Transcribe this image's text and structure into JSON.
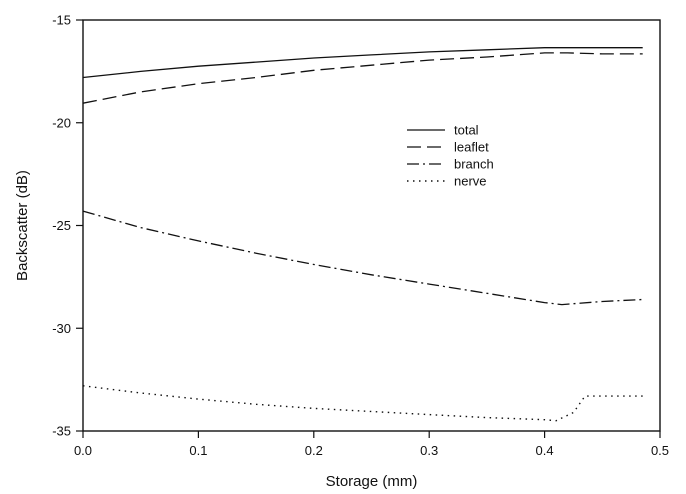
{
  "chart_data": {
    "type": "line",
    "title": "",
    "xlabel": "Storage (mm)",
    "ylabel": "Backscatter (dB)",
    "xlim": [
      0,
      0.5
    ],
    "ylim": [
      -35,
      -15
    ],
    "xticks": [
      0.0,
      0.1,
      0.2,
      0.3,
      0.4,
      0.5
    ],
    "xtick_labels": [
      "0.0",
      "0.1",
      "0.2",
      "0.3",
      "0.4",
      "0.5"
    ],
    "yticks": [
      -35,
      -30,
      -25,
      -20,
      -15
    ],
    "ytick_labels": [
      "-35",
      "-30",
      "-25",
      "-20",
      "-15"
    ],
    "grid": false,
    "legend_position": "center-right",
    "series": [
      {
        "name": "total",
        "style": "solid",
        "x": [
          0.0,
          0.05,
          0.1,
          0.15,
          0.2,
          0.25,
          0.3,
          0.35,
          0.4,
          0.41,
          0.45,
          0.485
        ],
        "y": [
          -17.8,
          -17.5,
          -17.25,
          -17.05,
          -16.85,
          -16.7,
          -16.55,
          -16.45,
          -16.35,
          -16.35,
          -16.35,
          -16.35
        ]
      },
      {
        "name": "leaflet",
        "style": "dashed",
        "x": [
          0.0,
          0.05,
          0.1,
          0.15,
          0.2,
          0.25,
          0.3,
          0.35,
          0.4,
          0.42,
          0.45,
          0.485
        ],
        "y": [
          -19.05,
          -18.5,
          -18.1,
          -17.8,
          -17.45,
          -17.2,
          -16.95,
          -16.8,
          -16.6,
          -16.6,
          -16.65,
          -16.65
        ]
      },
      {
        "name": "branch",
        "style": "dash-dot",
        "x": [
          0.0,
          0.05,
          0.1,
          0.15,
          0.2,
          0.25,
          0.3,
          0.35,
          0.4,
          0.415,
          0.45,
          0.485
        ],
        "y": [
          -24.3,
          -25.1,
          -25.75,
          -26.35,
          -26.9,
          -27.4,
          -27.85,
          -28.3,
          -28.75,
          -28.85,
          -28.7,
          -28.6
        ]
      },
      {
        "name": "nerve",
        "style": "dotted",
        "x": [
          0.0,
          0.05,
          0.1,
          0.15,
          0.2,
          0.25,
          0.3,
          0.35,
          0.4,
          0.41,
          0.425,
          0.435,
          0.45,
          0.485
        ],
        "y": [
          -32.8,
          -33.15,
          -33.45,
          -33.7,
          -33.9,
          -34.05,
          -34.2,
          -34.35,
          -34.45,
          -34.5,
          -34.1,
          -33.3,
          -33.3,
          -33.3
        ]
      }
    ],
    "colors": {
      "line": "#111111",
      "axes": "#111111",
      "background": "#ffffff"
    }
  }
}
